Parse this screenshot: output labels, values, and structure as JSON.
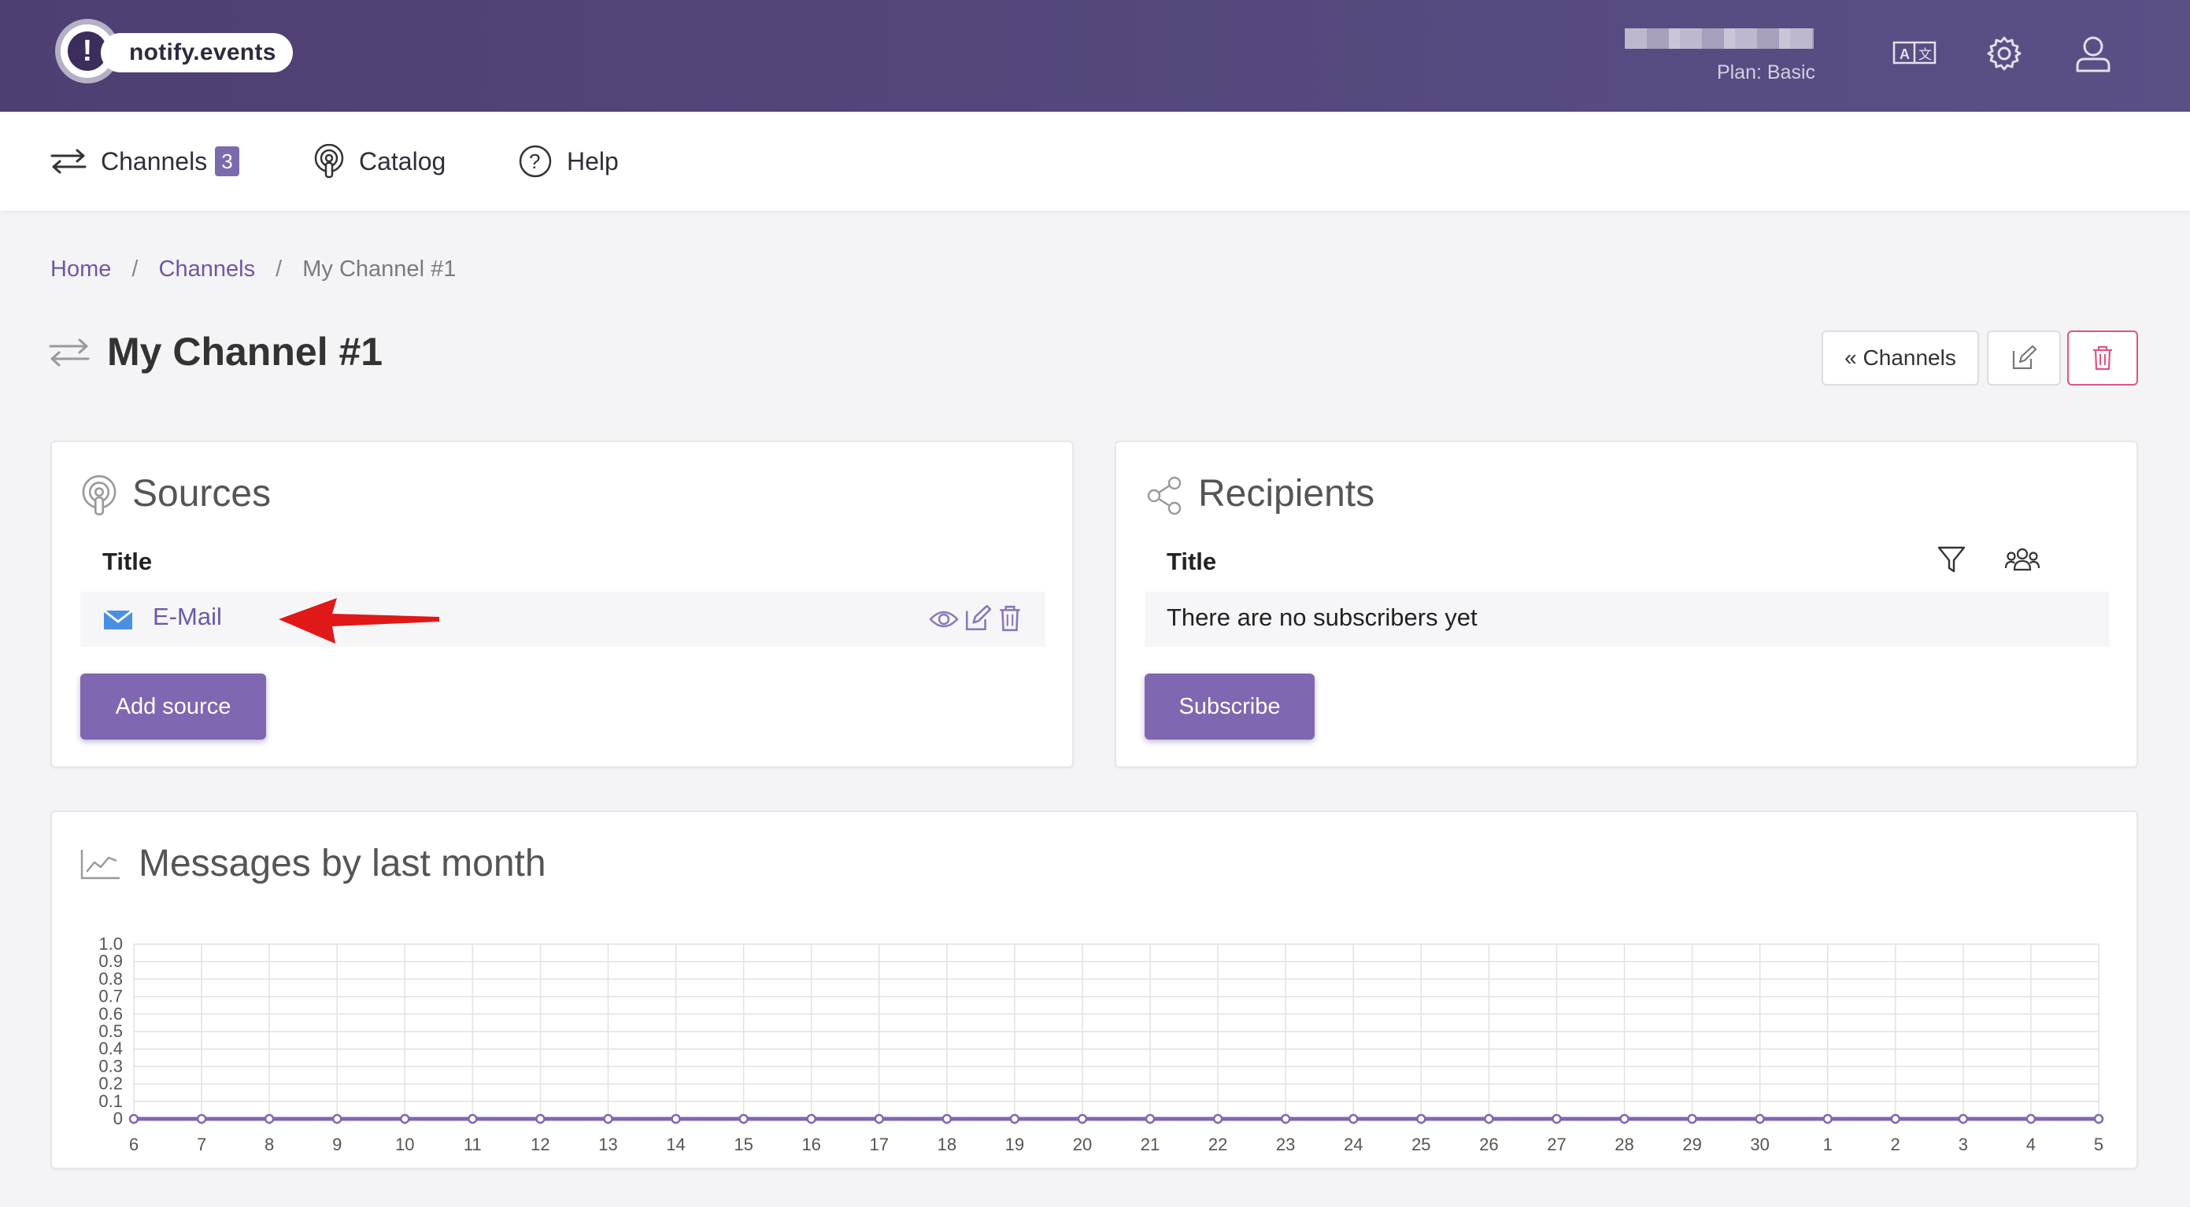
{
  "header": {
    "brand": "notify.events",
    "logo_glyph": "!",
    "plan": "Plan: Basic",
    "icons": [
      "translate-icon",
      "gear-icon",
      "user-icon"
    ]
  },
  "nav": {
    "channels_label": "Channels",
    "channels_count": "3",
    "catalog_label": "Catalog",
    "help_label": "Help"
  },
  "breadcrumb": {
    "home": "Home",
    "sep": "/",
    "channels": "Channels",
    "current": "My Channel #1"
  },
  "page": {
    "title": "My Channel #1",
    "back_button": "« Channels"
  },
  "sources": {
    "title": "Sources",
    "column": "Title",
    "items": [
      {
        "label": "E-Mail",
        "icon": "mail-icon"
      }
    ],
    "add_button": "Add source"
  },
  "recipients": {
    "title": "Recipients",
    "column": "Title",
    "empty_text": "There are no subscribers yet",
    "subscribe_button": "Subscribe"
  },
  "chart_data": {
    "type": "line",
    "title": "Messages by last month",
    "x": [
      "6",
      "7",
      "8",
      "9",
      "10",
      "11",
      "12",
      "13",
      "14",
      "15",
      "16",
      "17",
      "18",
      "19",
      "20",
      "21",
      "22",
      "23",
      "24",
      "25",
      "26",
      "27",
      "28",
      "29",
      "30",
      "1",
      "2",
      "3",
      "4",
      "5"
    ],
    "series": [
      {
        "values": [
          0,
          0,
          0,
          0,
          0,
          0,
          0,
          0,
          0,
          0,
          0,
          0,
          0,
          0,
          0,
          0,
          0,
          0,
          0,
          0,
          0,
          0,
          0,
          0,
          0,
          0,
          0,
          0,
          0,
          0
        ]
      }
    ],
    "ylim": [
      0,
      1.0
    ],
    "yticks": [
      "1.0",
      "0.9",
      "0.8",
      "0.7",
      "0.6",
      "0.5",
      "0.4",
      "0.3",
      "0.2",
      "0.1",
      "0"
    ],
    "grid": true,
    "colors": {
      "line": "#7f67b2",
      "grid": "#e2e2e2"
    }
  },
  "colors": {
    "accent": "#7f67b2",
    "header": "#55477d",
    "danger": "#e0557f"
  }
}
